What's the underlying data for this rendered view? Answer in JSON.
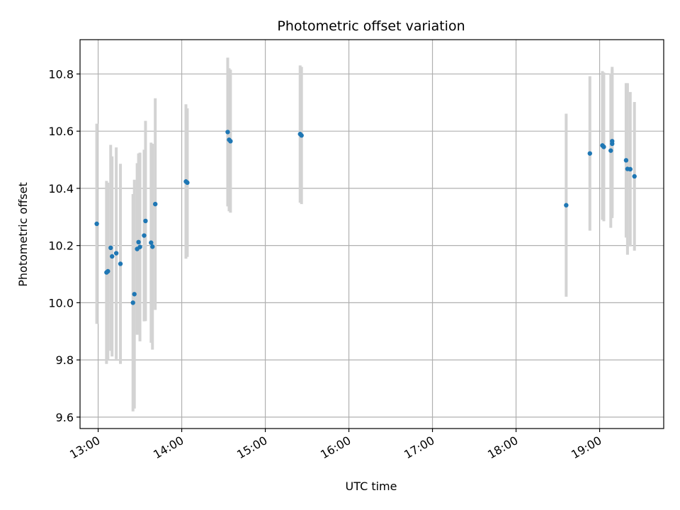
{
  "chart_data": {
    "type": "scatter",
    "title": "Photometric offset variation",
    "xlabel": "UTC time",
    "ylabel": "Photometric offset",
    "x_axis_type": "time",
    "xlim": [
      "12:47",
      "19:46"
    ],
    "ylim": [
      9.56,
      10.92
    ],
    "grid": true,
    "x_ticks": [
      "13:00",
      "14:00",
      "15:00",
      "16:00",
      "17:00",
      "18:00",
      "19:00"
    ],
    "y_ticks": [
      "9.6",
      "9.8",
      "10.0",
      "10.2",
      "10.4",
      "10.6",
      "10.8"
    ],
    "colors": {
      "point": "#1f77b4",
      "errorbar": "#d3d3d3",
      "grid": "#b0b0b0"
    },
    "points": [
      {
        "t": "12:59",
        "y": 10.276,
        "err": 0.35
      },
      {
        "t": "13:06",
        "y": 10.106,
        "err": 0.32
      },
      {
        "t": "13:07",
        "y": 10.11,
        "err": 0.31
      },
      {
        "t": "13:09",
        "y": 10.192,
        "err": 0.36
      },
      {
        "t": "13:10",
        "y": 10.162,
        "err": 0.35
      },
      {
        "t": "13:13",
        "y": 10.173,
        "err": 0.37
      },
      {
        "t": "13:16",
        "y": 10.136,
        "err": 0.35
      },
      {
        "t": "13:25",
        "y": 10.0,
        "err": 0.38
      },
      {
        "t": "13:26",
        "y": 10.03,
        "err": 0.4
      },
      {
        "t": "13:28",
        "y": 10.188,
        "err": 0.3
      },
      {
        "t": "13:29",
        "y": 10.212,
        "err": 0.31
      },
      {
        "t": "13:30",
        "y": 10.195,
        "err": 0.33
      },
      {
        "t": "13:33",
        "y": 10.235,
        "err": 0.3
      },
      {
        "t": "13:34",
        "y": 10.286,
        "err": 0.35
      },
      {
        "t": "13:38",
        "y": 10.21,
        "err": 0.35
      },
      {
        "t": "13:39",
        "y": 10.196,
        "err": 0.36
      },
      {
        "t": "13:41",
        "y": 10.345,
        "err": 0.37
      },
      {
        "t": "14:03",
        "y": 10.424,
        "err": 0.27
      },
      {
        "t": "14:04",
        "y": 10.42,
        "err": 0.26
      },
      {
        "t": "14:33",
        "y": 10.597,
        "err": 0.26
      },
      {
        "t": "14:34",
        "y": 10.57,
        "err": 0.25
      },
      {
        "t": "14:35",
        "y": 10.565,
        "err": 0.25
      },
      {
        "t": "15:25",
        "y": 10.59,
        "err": 0.24
      },
      {
        "t": "15:26",
        "y": 10.585,
        "err": 0.24
      },
      {
        "t": "18:36",
        "y": 10.341,
        "err": 0.32
      },
      {
        "t": "18:53",
        "y": 10.522,
        "err": 0.27
      },
      {
        "t": "19:02",
        "y": 10.55,
        "err": 0.26
      },
      {
        "t": "19:03",
        "y": 10.545,
        "err": 0.26
      },
      {
        "t": "19:08",
        "y": 10.532,
        "err": 0.27
      },
      {
        "t": "19:09",
        "y": 10.556,
        "err": 0.26
      },
      {
        "t": "19:09",
        "y": 10.565,
        "err": 0.26
      },
      {
        "t": "19:19",
        "y": 10.498,
        "err": 0.27
      },
      {
        "t": "19:20",
        "y": 10.468,
        "err": 0.3
      },
      {
        "t": "19:22",
        "y": 10.467,
        "err": 0.27
      },
      {
        "t": "19:25",
        "y": 10.442,
        "err": 0.26
      }
    ]
  }
}
